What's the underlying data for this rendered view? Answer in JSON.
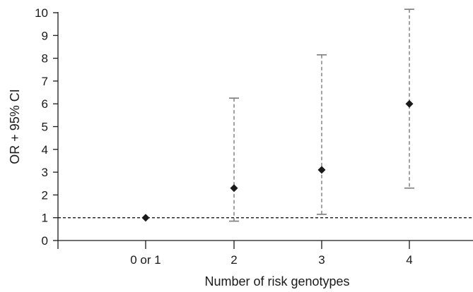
{
  "chart_data": {
    "type": "scatter",
    "title": "",
    "xlabel": "Number of risk genotypes",
    "ylabel": "OR + 95% CI",
    "categories": [
      "0 or 1",
      "2",
      "3",
      "4"
    ],
    "values": [
      1.0,
      2.3,
      3.1,
      6.0
    ],
    "ci_lower": [
      null,
      0.85,
      1.15,
      2.3
    ],
    "ci_upper": [
      null,
      6.25,
      8.15,
      10.15
    ],
    "ylim": [
      0,
      10
    ],
    "yticks": [
      0,
      1,
      2,
      3,
      4,
      5,
      6,
      7,
      8,
      9,
      10
    ],
    "reference_line": 1,
    "grid": false,
    "colors": {
      "marker": "#1a1a1a",
      "ci": "#8a8a8a",
      "axis": "#1a1a1a"
    }
  }
}
